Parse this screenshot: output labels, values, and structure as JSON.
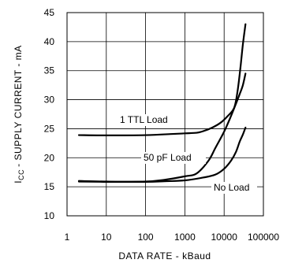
{
  "chart_data": {
    "type": "line",
    "title": "",
    "xlabel": "DATA RATE - kBaud",
    "ylabel_main": "- SUPPLY CURRENT - mA",
    "ylabel_symbol": "I",
    "ylabel_subscript": "CC",
    "x_scale": "log",
    "xlim": [
      1,
      100000
    ],
    "ylim": [
      10,
      45
    ],
    "grid": true,
    "x_ticks": [
      {
        "value": 1,
        "label": "1"
      },
      {
        "value": 10,
        "label": "10"
      },
      {
        "value": 100,
        "label": "100"
      },
      {
        "value": 1000,
        "label": "1000"
      },
      {
        "value": 10000,
        "label": "10000"
      },
      {
        "value": 100000,
        "label": "100000"
      }
    ],
    "y_ticks": [
      {
        "value": 10,
        "label": "10"
      },
      {
        "value": 15,
        "label": "15"
      },
      {
        "value": 20,
        "label": "20"
      },
      {
        "value": 25,
        "label": "25"
      },
      {
        "value": 30,
        "label": "30"
      },
      {
        "value": 35,
        "label": "35"
      },
      {
        "value": 40,
        "label": "40"
      },
      {
        "value": 45,
        "label": "45"
      }
    ],
    "series": [
      {
        "name": "1 TTL Load",
        "x": [
          2,
          10,
          100,
          500,
          1000,
          2000,
          3000,
          5000,
          8000,
          12000,
          18000,
          22000,
          26000,
          30000,
          35000
        ],
        "y": [
          23.9,
          23.85,
          23.9,
          24.1,
          24.2,
          24.3,
          24.6,
          25.2,
          26.0,
          27.1,
          28.6,
          31.5,
          35.5,
          39.5,
          43.0
        ]
      },
      {
        "name": "50 pF Load",
        "x": [
          2,
          10,
          100,
          300,
          1000,
          2000,
          4000,
          6000,
          10000,
          15000,
          20000,
          25000,
          30000,
          35000
        ],
        "y": [
          16.0,
          15.9,
          15.9,
          16.2,
          16.8,
          17.3,
          19.5,
          21.7,
          24.5,
          27.2,
          29.3,
          31.0,
          32.5,
          34.5
        ]
      },
      {
        "name": "No Load",
        "x": [
          2,
          10,
          100,
          300,
          1000,
          3000,
          6000,
          10000,
          15000,
          20000,
          25000,
          30000,
          35000
        ],
        "y": [
          15.9,
          15.85,
          15.85,
          15.95,
          16.1,
          16.6,
          17.1,
          18.1,
          19.5,
          21.0,
          22.8,
          24.0,
          25.2
        ]
      }
    ],
    "labels": [
      {
        "text": "1 TTL Load"
      },
      {
        "text": "50 pF Load"
      },
      {
        "text": "No Load"
      }
    ]
  }
}
